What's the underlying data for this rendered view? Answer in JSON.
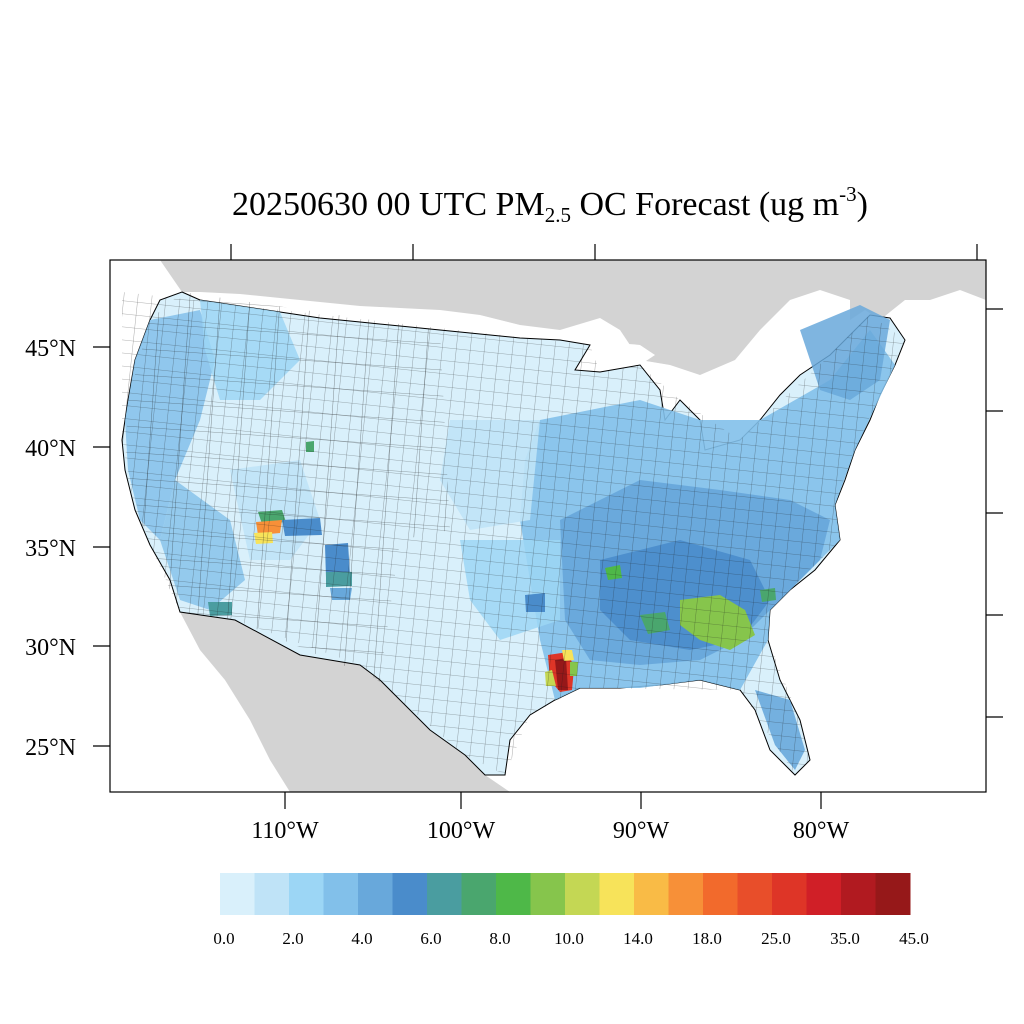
{
  "title": {
    "main": "20250630 00 UTC PM",
    "subscript": "2.5",
    "mid": " OC Forecast (ug m",
    "superscript": "-3",
    "end": ")"
  },
  "lat_labels": [
    "45°N",
    "40°N",
    "35°N",
    "30°N",
    "25°N"
  ],
  "lon_labels": [
    "110°W",
    "100°W",
    "90°W",
    "80°W"
  ],
  "colorbar": {
    "colors": [
      "#d9f0fb",
      "#bfe3f7",
      "#9cd6f5",
      "#82c0ea",
      "#68a8db",
      "#4a8ccb",
      "#4a9da0",
      "#4aa66e",
      "#4eb848",
      "#86c54c",
      "#c4d754",
      "#f7e35a",
      "#f9bb46",
      "#f79038",
      "#f26a2c",
      "#e84e2a",
      "#de3527",
      "#d01f27",
      "#b11a20",
      "#961819"
    ],
    "labels": [
      "0.0",
      "2.0",
      "4.0",
      "6.0",
      "8.0",
      "10.0",
      "14.0",
      "18.0",
      "25.0",
      "35.0",
      "45.0"
    ]
  },
  "legend_colors": {
    "land_background": "#d3d3d3",
    "water": "#ffffff"
  }
}
